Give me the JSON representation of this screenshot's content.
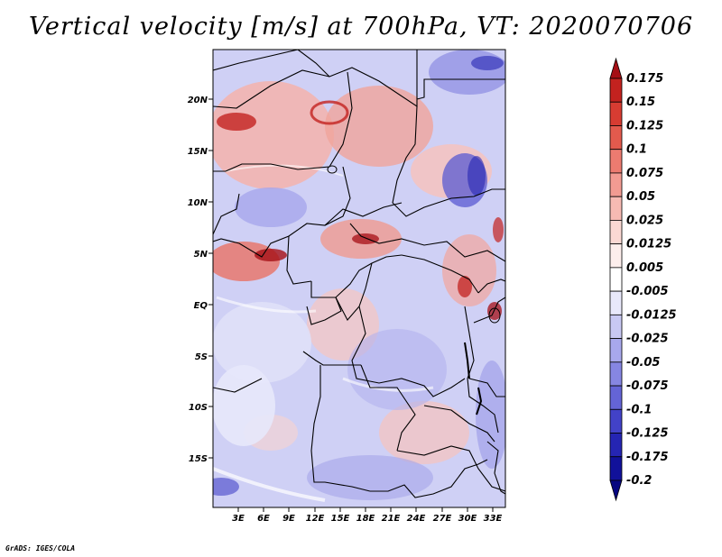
{
  "title": "Vertical velocity [m/s] at 700hPa, VT: 2020070706",
  "credit": "GrADS: IGES/COLA",
  "map": {
    "lat_labels": [
      "20N",
      "15N",
      "10N",
      "5N",
      "EQ",
      "5S",
      "10S",
      "15S"
    ],
    "lon_labels": [
      "3E",
      "6E",
      "9E",
      "12E",
      "15E",
      "18E",
      "21E",
      "24E",
      "27E",
      "30E",
      "33E"
    ]
  },
  "colorbar": {
    "labels": [
      "0.175",
      "0.15",
      "0.125",
      "0.1",
      "0.075",
      "0.05",
      "0.025",
      "0.0125",
      "0.005",
      "-0.005",
      "-0.0125",
      "-0.025",
      "-0.05",
      "-0.075",
      "-0.1",
      "-0.125",
      "-0.175",
      "-0.2"
    ],
    "colors": [
      "#a50f15",
      "#c3221f",
      "#d73c32",
      "#e35a4d",
      "#ec7b70",
      "#f29b92",
      "#f7bab3",
      "#fbd8d3",
      "#fdeeec",
      "#ffffff",
      "#e8e8fb",
      "#c8c8f3",
      "#a8a8ec",
      "#8686e2",
      "#6464d6",
      "#4242c8",
      "#2525b3",
      "#11119a",
      "#060680"
    ]
  },
  "colors": {
    "field_bg": "#cfd0f5",
    "border": "#000000"
  }
}
